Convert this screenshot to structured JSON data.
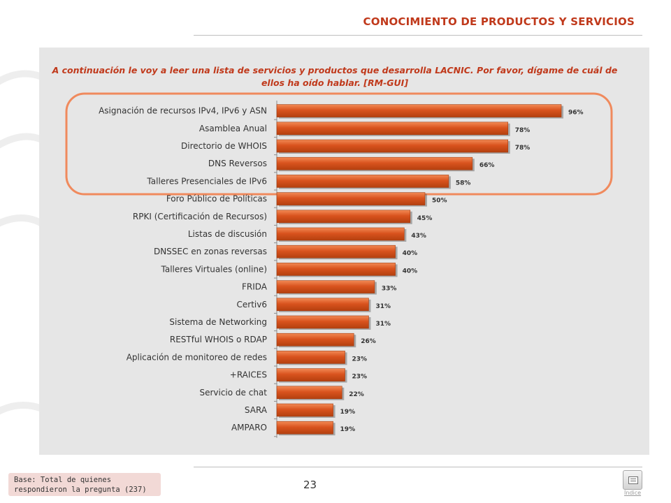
{
  "header": {
    "title": "CONOCIMIENTO DE PRODUCTOS Y SERVICIOS"
  },
  "question": {
    "text": "A continuación le voy a leer una lista de servicios y productos que desarrolla LACNIC. Por favor, dígame de cuál de ellos ha oído hablar. [RM-GUI]"
  },
  "footer": {
    "page_number": "23",
    "base_note": "Base: Total de quienes respondieron la pregunta (237)",
    "index_label": "Índice"
  },
  "colors": {
    "bar": "#d9531e",
    "accent": "#c0391b",
    "highlight_border": "#f08a5d"
  },
  "chart_data": {
    "type": "bar",
    "orientation": "horizontal",
    "title": "",
    "xlabel": "",
    "ylabel": "",
    "xlim": [
      0,
      100
    ],
    "grid": false,
    "categories": [
      "Asignación de recursos IPv4, IPv6 y ASN",
      "Asamblea Anual",
      "Directorio de WHOIS",
      "DNS Reversos",
      "Talleres Presenciales de IPv6",
      "Foro Público de Políticas",
      "RPKI (Certificación de Recursos)",
      "Listas de discusión",
      "DNSSEC en zonas reversas",
      "Talleres Virtuales (online)",
      "FRIDA",
      "Certiv6",
      "Sistema de Networking",
      "RESTful WHOIS o RDAP",
      "Aplicación de monitoreo de redes",
      "+RAICES",
      "Servicio de chat",
      "SARA",
      "AMPARO"
    ],
    "values": [
      96,
      78,
      78,
      66,
      58,
      50,
      45,
      43,
      40,
      40,
      33,
      31,
      31,
      26,
      23,
      23,
      22,
      19,
      19
    ],
    "value_labels": [
      "96%",
      "78%",
      "78%",
      "66%",
      "58%",
      "50%",
      "45%",
      "43%",
      "40%",
      "40%",
      "33%",
      "31%",
      "31%",
      "26%",
      "23%",
      "23%",
      "22%",
      "19%",
      "19%"
    ],
    "highlighted_top_count": 5
  }
}
